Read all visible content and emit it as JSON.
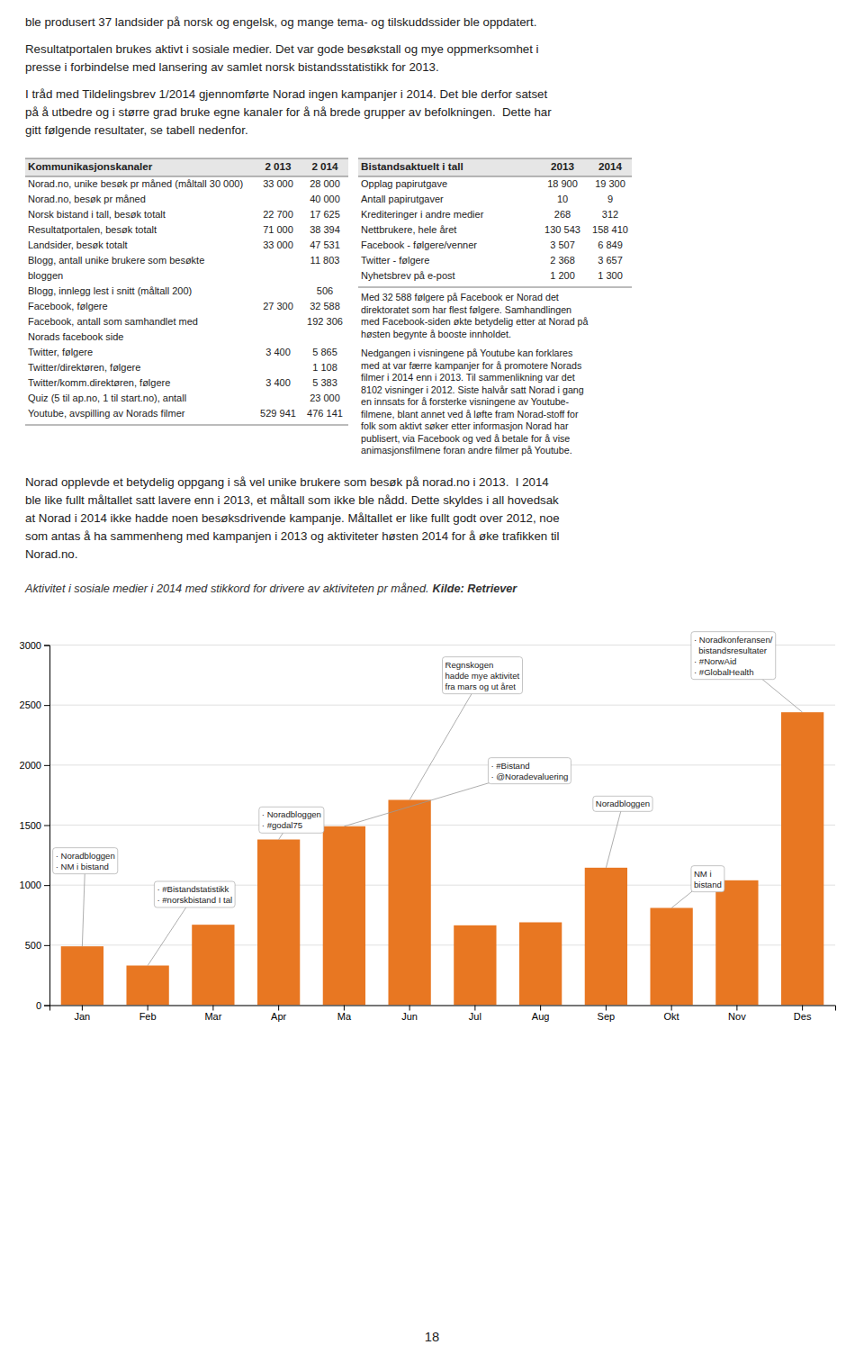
{
  "page": {
    "page_number": "18",
    "intro_paragraphs": [
      [
        "ble produsert 37 landsider på norsk og engelsk, og mange tema- og tilskuddssider ble oppdatert."
      ],
      [
        "Resultatportalen brukes aktivt i sosiale medier. Det var gode besøkstall og mye oppmerksomhet i",
        "presse i forbindelse med lansering av samlet norsk bistandsstatistikk for 2013."
      ],
      [
        "I tråd med Tildelingsbrev 1/2014 gjennomførte Norad ingen kampanjer i 2014. Det ble derfor satset",
        "på å utbedre og i større grad bruke egne kanaler for å nå brede grupper av befolkningen.  Dette har",
        "gitt følgende resultater, se tabell nedenfor."
      ]
    ],
    "left_table": {
      "header": [
        "Kommunikasjonskanaler",
        "2 013",
        "2 014"
      ],
      "rows": [
        [
          [
            "Norad.no, unike besøk pr måned (måltall 30 000)"
          ],
          "33 000",
          "28 000"
        ],
        [
          [
            "Norad.no, besøk pr måned"
          ],
          null,
          "40 000"
        ],
        [
          [
            "Norsk bistand i tall, besøk totalt"
          ],
          "22 700",
          "17 625"
        ],
        [
          [
            "Resultatportalen, besøk totalt"
          ],
          "71 000",
          "38 394"
        ],
        [
          [
            "Landsider, besøk totalt"
          ],
          "33 000",
          "47 531"
        ],
        [
          [
            "Blogg, antall unike brukere som besøkte",
            "bloggen"
          ],
          null,
          "11 803"
        ],
        [
          [
            "Blogg, innlegg lest i snitt (måltall 200)"
          ],
          null,
          "506"
        ],
        [
          [
            "Facebook, følgere"
          ],
          "27 300",
          "32 588"
        ],
        [
          [
            "Facebook, antall som samhandlet med",
            "Norads facebook side"
          ],
          null,
          "192 306"
        ],
        [
          [
            "Twitter, følgere"
          ],
          "3 400",
          "5 865"
        ],
        [
          [
            "Twitter/direktøren, følgere"
          ],
          null,
          "1 108"
        ],
        [
          [
            "Twitter/komm.direktøren, følgere"
          ],
          "3 400",
          "5 383"
        ],
        [
          [
            "Quiz (5 til ap.no, 1 til start.no), antall"
          ],
          null,
          "23 000"
        ],
        [
          [
            "Youtube, avspilling av Norads filmer"
          ],
          "529 941",
          "476 141"
        ]
      ]
    },
    "right_table": {
      "header": [
        "Bistandsaktuelt i tall",
        "2013",
        "2014"
      ],
      "rows": [
        [
          "Opplag papirutgave",
          "18 900",
          "19 300"
        ],
        [
          "Antall papirutgaver",
          "10",
          "9"
        ],
        [
          "Krediteringer i andre medier",
          "268",
          "312"
        ],
        [
          "Nettbrukere, hele året",
          "130 543",
          "158 410"
        ],
        [
          "Facebook - følgere/venner",
          "3 507",
          "6 849"
        ],
        [
          "Twitter - følgere",
          "2 368",
          "3 657"
        ],
        [
          "Nyhetsbrev på e-post",
          "1 200",
          "1 300"
        ]
      ],
      "text_blocks": [
        [
          "Med 32 588 følgere på Facebook er Norad det",
          "direktoratet som har flest følgere. Samhandlingen",
          "med Facebook-siden økte betydelig etter at Norad på",
          "høsten begynte å booste innholdet."
        ],
        [
          "Nedgangen i visningene på Youtube kan forklares",
          "med at var færre kampanjer for å promotere Norads",
          "filmer i 2014 enn i 2013. Til sammenlikning var det",
          "8102 visninger i 2012. Siste halvår satt Norad i gang",
          "en innsats for å forsterke visningene av Youtube-",
          "filmene, blant annet ved å løfte fram Norad-stoff for",
          "folk som aktivt søker etter informasjon Norad har",
          "publisert, via Facebook og ved å betale for å vise",
          "animasjonsfilmene foran andre filmer på Youtube."
        ]
      ]
    },
    "body_paragraphs": [
      [
        "Norad opplevde et betydelig oppgang i så vel unike brukere som besøk på norad.no i 2013.  I 2014",
        "ble like fullt måltallet satt lavere enn i 2013, et måltall som ikke ble nådd. Dette skyldes i all hovedsak",
        "at Norad i 2014 ikke hadde noen besøksdrivende kampanje. Måltallet er like fullt godt over 2012, noe",
        "som antas å ha sammenheng med kampanjen i 2013 og aktiviteter høsten 2014 for å øke trafikken til",
        "Norad.no."
      ]
    ]
  },
  "chart_data": {
    "type": "bar",
    "title": "Aktivitet i sosiale medier i 2014 med stikkord for drivere av aktiviteten pr måned.",
    "subtitle": "Kilde: Retriever",
    "categories": [
      "Jan",
      "Feb",
      "Mar",
      "Apr",
      "Ma",
      "Jun",
      "Jul",
      "Aug",
      "Sep",
      "Okt",
      "Nov",
      "Des"
    ],
    "values": [
      490,
      330,
      670,
      1380,
      1490,
      1710,
      665,
      690,
      1145,
      810,
      1040,
      2440
    ],
    "color": "#e87722",
    "ylim": [
      0,
      3000
    ],
    "yticks": [
      0,
      500,
      1000,
      1500,
      2000,
      2500,
      3000
    ],
    "grid": true,
    "annotations": [
      {
        "text": [
          "· Noradbloggen",
          "· NM i bistand"
        ],
        "category": "Jan",
        "value": 490
      },
      {
        "text": [
          "· #Bistandstatistikk",
          "· #norskbistand I tal"
        ],
        "category": "Feb",
        "value": 330
      },
      {
        "text": [
          "· Noradbloggen",
          "· #godal75"
        ],
        "category": "Apr",
        "value": 1380
      },
      {
        "text": [
          "Regnskogen",
          "hadde mye aktivitet",
          "fra mars og ut året"
        ],
        "category": "Jun",
        "value": 1710
      },
      {
        "text": [
          "· #Bistand",
          "· @Noradevaluering"
        ],
        "category": "Ma",
        "value": 1490
      },
      {
        "text": [
          "Noradbloggen"
        ],
        "category": "Sep",
        "value": 1145
      },
      {
        "text": [
          "NM i",
          "bistand"
        ],
        "category": "Okt",
        "value": 810
      },
      {
        "text": [
          "· Noradkonferansen/",
          "  bistandsresultater",
          "· #NorwAid",
          "· #GlobalHealth"
        ],
        "category": "Des",
        "value": 2440
      }
    ]
  }
}
